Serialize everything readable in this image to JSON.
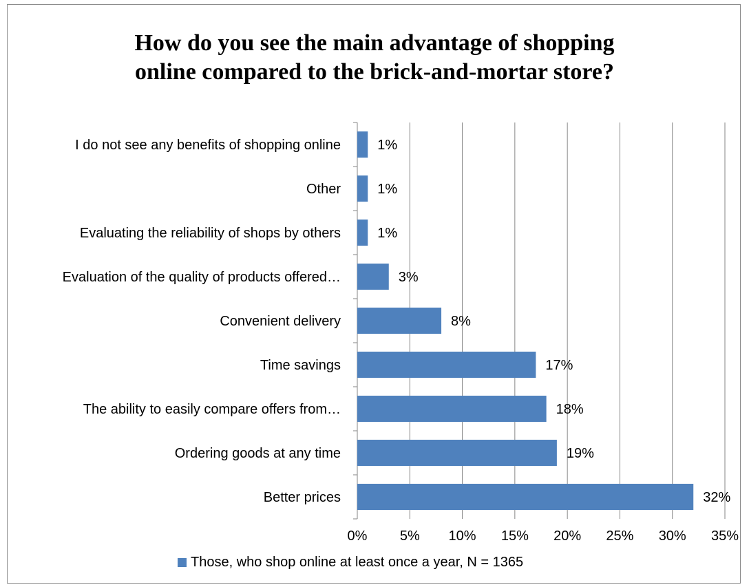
{
  "chart_data": {
    "type": "bar",
    "orientation": "horizontal",
    "title_lines": [
      "How do you see the main advantage of shopping",
      "online compared to the brick-and-mortar store?"
    ],
    "categories": [
      "I do not see any benefits of shopping online",
      "Other",
      "Evaluating the reliability of shops by others",
      "Evaluation of the quality of products offered…",
      "Convenient delivery",
      "Time savings",
      "The ability to easily compare offers from…",
      "Ordering goods at any time",
      "Better prices"
    ],
    "series": [
      {
        "name": "Those, who shop online at least once a year, N = 1365",
        "values": [
          1,
          1,
          1,
          3,
          8,
          17,
          18,
          19,
          32
        ],
        "data_labels": [
          "1%",
          "1%",
          "1%",
          "3%",
          "8%",
          "17%",
          "18%",
          "19%",
          "32%"
        ],
        "color": "#4f81bd"
      }
    ],
    "xlim": [
      0,
      35
    ],
    "x_ticks": [
      0,
      5,
      10,
      15,
      20,
      25,
      30,
      35
    ],
    "x_tick_labels": [
      "0%",
      "5%",
      "10%",
      "15%",
      "20%",
      "25%",
      "30%",
      "35%"
    ],
    "grid": true,
    "legend_position": "bottom"
  }
}
